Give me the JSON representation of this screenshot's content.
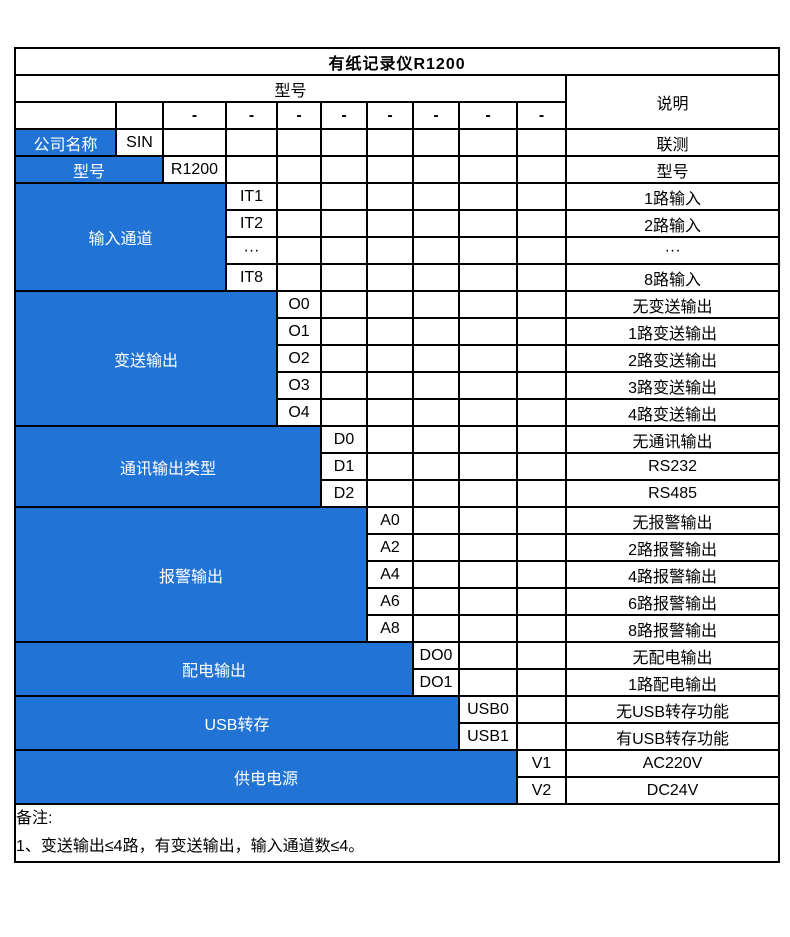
{
  "title": "有纸记录仪R1200",
  "header": {
    "model_label": "型号",
    "desc_label": "说明"
  },
  "separator": "-",
  "sections": [
    {
      "label": "公司名称",
      "code_col": 2,
      "rows": [
        {
          "code": "SIN",
          "desc": "联测"
        }
      ]
    },
    {
      "label": "型号",
      "code_col": 3,
      "rows": [
        {
          "code": "R1200",
          "desc": "型号"
        }
      ]
    },
    {
      "label": "输入通道",
      "code_col": 4,
      "rows": [
        {
          "code": "IT1",
          "desc": "1路输入"
        },
        {
          "code": "IT2",
          "desc": "2路输入"
        },
        {
          "code": "···",
          "desc": "···"
        },
        {
          "code": "IT8",
          "desc": "8路输入"
        }
      ]
    },
    {
      "label": "变送输出",
      "code_col": 5,
      "rows": [
        {
          "code": "O0",
          "desc": "无变送输出"
        },
        {
          "code": "O1",
          "desc": "1路变送输出"
        },
        {
          "code": "O2",
          "desc": "2路变送输出"
        },
        {
          "code": "O3",
          "desc": "3路变送输出"
        },
        {
          "code": "O4",
          "desc": "4路变送输出"
        }
      ]
    },
    {
      "label": "通讯输出类型",
      "code_col": 6,
      "rows": [
        {
          "code": "D0",
          "desc": "无通讯输出"
        },
        {
          "code": "D1",
          "desc": "RS232"
        },
        {
          "code": "D2",
          "desc": "RS485"
        }
      ]
    },
    {
      "label": "报警输出",
      "code_col": 7,
      "rows": [
        {
          "code": "A0",
          "desc": "无报警输出"
        },
        {
          "code": "A2",
          "desc": "2路报警输出"
        },
        {
          "code": "A4",
          "desc": "4路报警输出"
        },
        {
          "code": "A6",
          "desc": "6路报警输出"
        },
        {
          "code": "A8",
          "desc": "8路报警输出"
        }
      ]
    },
    {
      "label": "配电输出",
      "code_col": 8,
      "rows": [
        {
          "code": "DO0",
          "desc": "无配电输出"
        },
        {
          "code": "DO1",
          "desc": "1路配电输出"
        }
      ]
    },
    {
      "label": "USB转存",
      "code_col": 9,
      "rows": [
        {
          "code": "USB0",
          "desc": "无USB转存功能"
        },
        {
          "code": "USB1",
          "desc": "有USB转存功能"
        }
      ]
    },
    {
      "label": "供电电源",
      "code_col": 10,
      "rows": [
        {
          "code": "V1",
          "desc": "AC220V"
        },
        {
          "code": "V2",
          "desc": "DC24V"
        }
      ]
    }
  ],
  "notes": {
    "line1": "备注:",
    "line2": "1、变送输出≤4路，有变送输出，输入通道数≤4。"
  },
  "colors": {
    "accent_blue": "#2173d6",
    "border": "#000000",
    "text": "#000000",
    "category_text": "#ffffff"
  }
}
